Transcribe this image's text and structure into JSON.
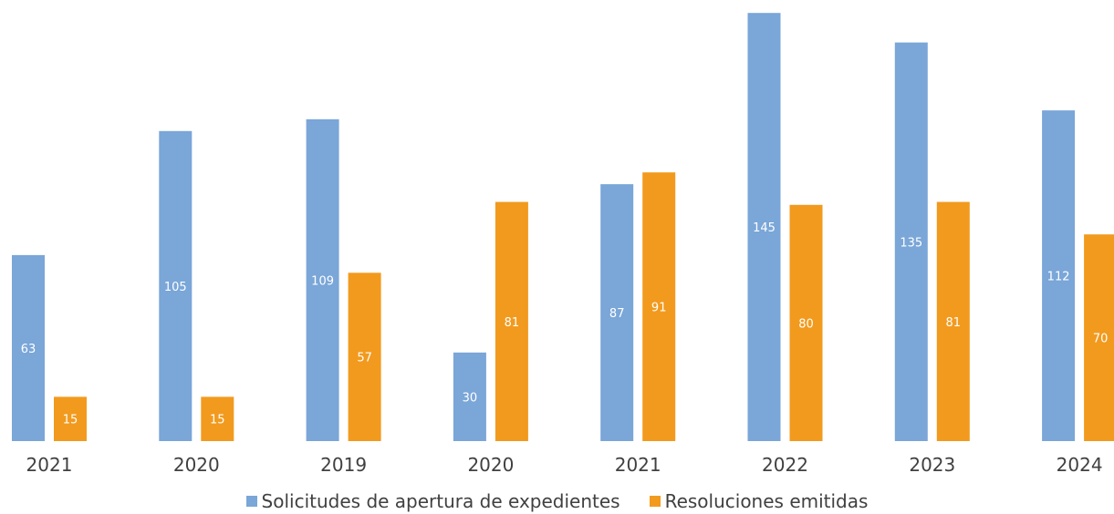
{
  "chart_data": {
    "type": "bar",
    "categories": [
      "2021",
      "2020",
      "2019",
      "2020",
      "2021",
      "2022",
      "2023",
      "2024"
    ],
    "series": [
      {
        "name": "Solicitudes de apertura de expedientes",
        "values": [
          63,
          105,
          109,
          30,
          87,
          145,
          135,
          112
        ],
        "color": "#7aa6d8"
      },
      {
        "name": "Resoluciones emitidas",
        "values": [
          15,
          15,
          57,
          81,
          91,
          80,
          81,
          70
        ],
        "color": "#f29a1e"
      }
    ],
    "ylim": [
      0,
      150
    ],
    "grid": false,
    "legend_position": "bottom"
  }
}
